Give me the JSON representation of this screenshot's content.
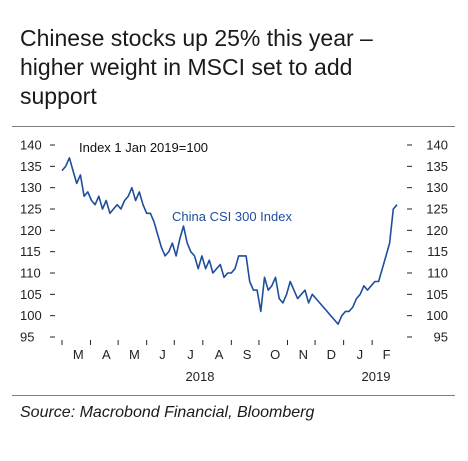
{
  "title_line1": "Chinese stocks up 25% this year –",
  "title_line2": "higher weight in MSCI set to add",
  "title_line3": "support",
  "source": "Source: Macrobond Financial, Bloomberg",
  "chart_data": {
    "type": "line",
    "annotation": "Index 1 Jan 2019=100",
    "series": [
      {
        "name": "China CSI 300 Index",
        "color": "#1f4e9c",
        "x": [
          "2018-03-01",
          "2018-03-05",
          "2018-03-09",
          "2018-03-13",
          "2018-03-17",
          "2018-03-21",
          "2018-03-25",
          "2018-03-29",
          "2018-04-02",
          "2018-04-06",
          "2018-04-10",
          "2018-04-14",
          "2018-04-18",
          "2018-04-22",
          "2018-04-26",
          "2018-04-30",
          "2018-05-04",
          "2018-05-08",
          "2018-05-12",
          "2018-05-16",
          "2018-05-20",
          "2018-05-24",
          "2018-05-28",
          "2018-06-01",
          "2018-06-05",
          "2018-06-09",
          "2018-06-13",
          "2018-06-17",
          "2018-06-21",
          "2018-06-25",
          "2018-06-29",
          "2018-07-03",
          "2018-07-07",
          "2018-07-11",
          "2018-07-15",
          "2018-07-19",
          "2018-07-23",
          "2018-07-27",
          "2018-07-31",
          "2018-08-04",
          "2018-08-08",
          "2018-08-12",
          "2018-08-16",
          "2018-08-20",
          "2018-08-24",
          "2018-08-28",
          "2018-09-01",
          "2018-09-05",
          "2018-09-09",
          "2018-09-13",
          "2018-09-17",
          "2018-09-21",
          "2018-09-25",
          "2018-09-29",
          "2018-10-03",
          "2018-10-07",
          "2018-10-11",
          "2018-10-15",
          "2018-10-19",
          "2018-10-23",
          "2018-10-27",
          "2018-10-31",
          "2018-11-04",
          "2018-11-08",
          "2018-11-12",
          "2018-11-16",
          "2018-11-20",
          "2018-11-24",
          "2018-11-28",
          "2018-12-02",
          "2018-12-06",
          "2018-12-10",
          "2018-12-14",
          "2018-12-18",
          "2018-12-22",
          "2018-12-26",
          "2018-12-30",
          "2019-01-03",
          "2019-01-07",
          "2019-01-11",
          "2019-01-15",
          "2019-01-19",
          "2019-01-23",
          "2019-01-27",
          "2019-01-31",
          "2019-02-04",
          "2019-02-08",
          "2019-02-12",
          "2019-02-16",
          "2019-02-20",
          "2019-02-24",
          "2019-02-28"
        ],
        "values": [
          134,
          135,
          137,
          134,
          131,
          133,
          128,
          129,
          127,
          126,
          128,
          125,
          127,
          124,
          125,
          126,
          125,
          127,
          128,
          130,
          127,
          129,
          126,
          124,
          124,
          122,
          119,
          116,
          114,
          115,
          117,
          114,
          118,
          121,
          117,
          115,
          114,
          111,
          114,
          111,
          113,
          110,
          111,
          112,
          109,
          110,
          110,
          111,
          114,
          114,
          114,
          108,
          106,
          106,
          101,
          109,
          106,
          107,
          109,
          104,
          103,
          105,
          108,
          106,
          104,
          105,
          106,
          103,
          105,
          104,
          103,
          102,
          101,
          100,
          99,
          98,
          100,
          101,
          101,
          102,
          104,
          105,
          107,
          106,
          107,
          108,
          108,
          111,
          114,
          117,
          125,
          126
        ]
      }
    ],
    "x_tick_labels": [
      "M",
      "A",
      "M",
      "J",
      "J",
      "A",
      "S",
      "O",
      "N",
      "D",
      "J",
      "F"
    ],
    "x_year_labels": [
      "2018",
      "2019"
    ],
    "y_ticks": [
      95,
      100,
      105,
      110,
      115,
      120,
      125,
      130,
      135,
      140
    ],
    "ylim": [
      95,
      140
    ],
    "x_start": "2018-03-01",
    "x_end": "2019-02-28",
    "grid": false,
    "right_axis": true
  }
}
